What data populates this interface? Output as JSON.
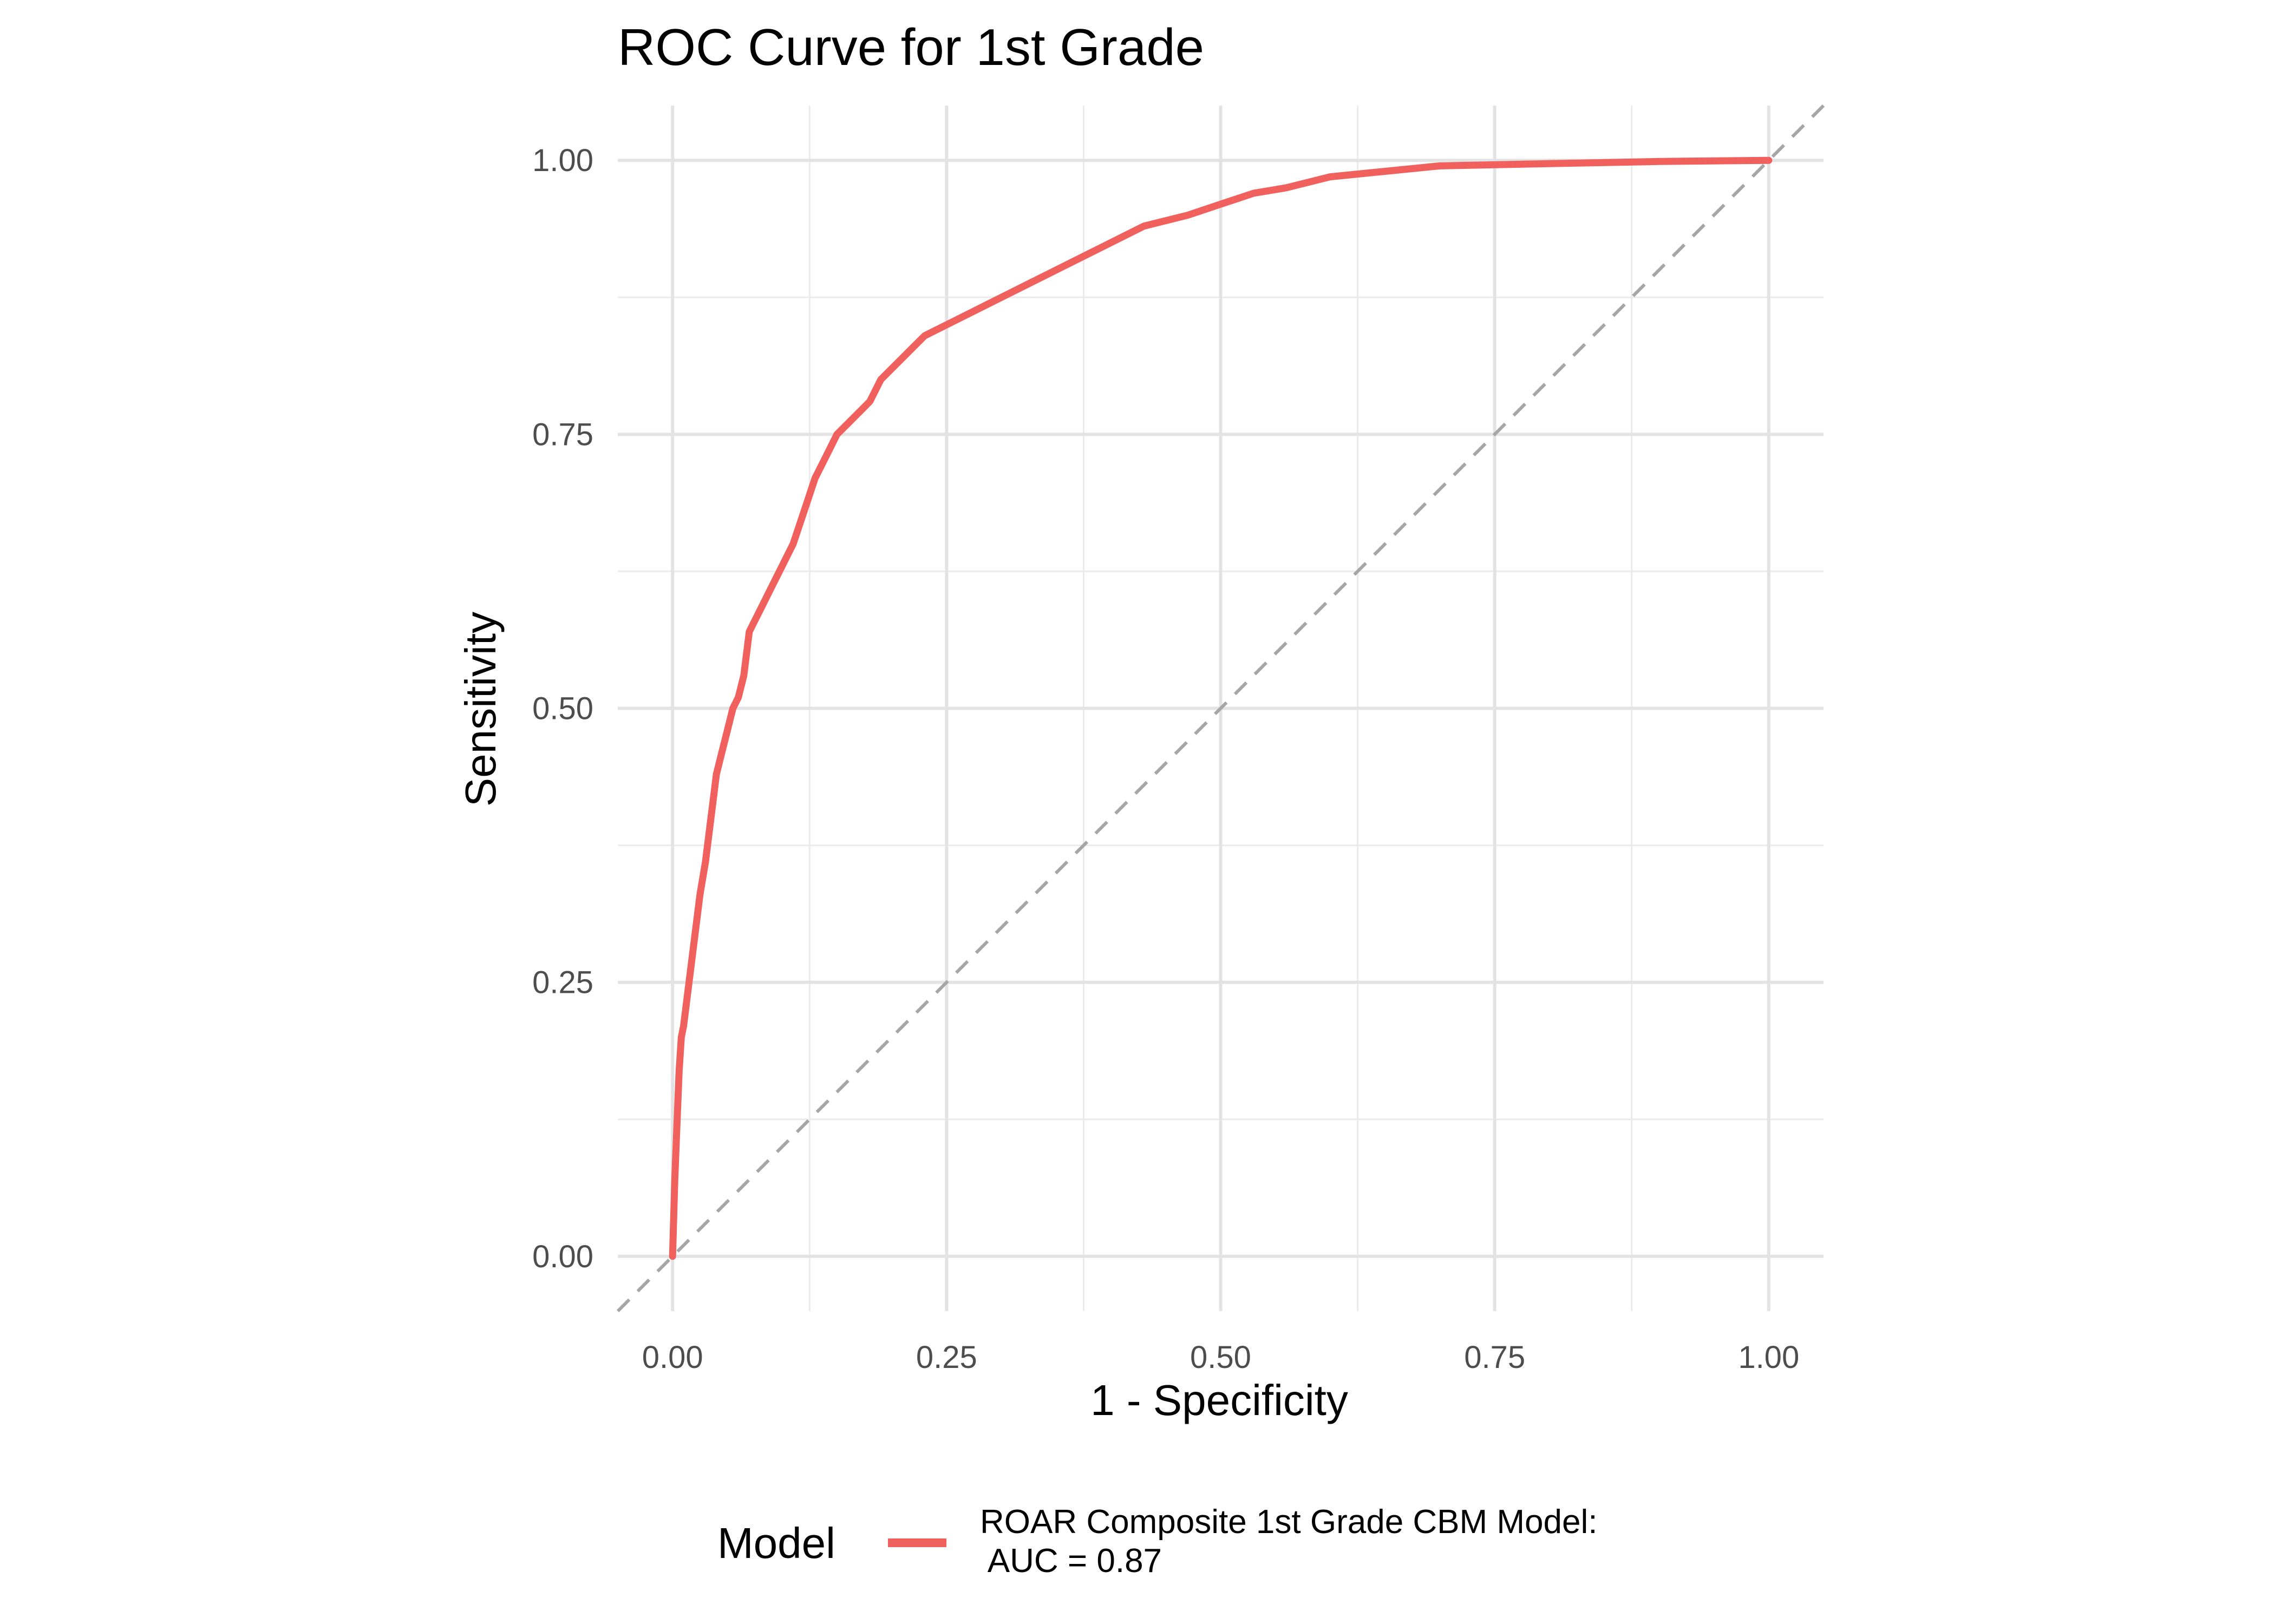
{
  "chart_data": {
    "type": "line",
    "title": "ROC Curve for 1st Grade",
    "xlabel": "1 - Specificity",
    "ylabel": "Sensitivity",
    "xlim": [
      -0.05,
      1.05
    ],
    "ylim": [
      -0.05,
      1.05
    ],
    "x_ticks": [
      "0.00",
      "0.25",
      "0.50",
      "0.75",
      "1.00"
    ],
    "y_ticks": [
      "0.00",
      "0.25",
      "0.50",
      "0.75",
      "1.00"
    ],
    "grid": true,
    "legend_position": "bottom",
    "legend_title": "Model",
    "series": [
      {
        "name": "ROAR Composite 1st Grade CBM Model:\n AUC = 0.87",
        "color": "#f0605c",
        "x": [
          0.0,
          0.002,
          0.004,
          0.006,
          0.008,
          0.01,
          0.015,
          0.02,
          0.025,
          0.03,
          0.035,
          0.04,
          0.045,
          0.05,
          0.055,
          0.06,
          0.065,
          0.07,
          0.08,
          0.09,
          0.1,
          0.11,
          0.12,
          0.13,
          0.14,
          0.15,
          0.16,
          0.17,
          0.18,
          0.19,
          0.2,
          0.21,
          0.22,
          0.23,
          0.25,
          0.27,
          0.29,
          0.31,
          0.33,
          0.35,
          0.37,
          0.39,
          0.41,
          0.43,
          0.45,
          0.47,
          0.5,
          0.53,
          0.56,
          0.6,
          0.65,
          0.7,
          0.8,
          0.9,
          1.0
        ],
        "y": [
          0.0,
          0.07,
          0.12,
          0.17,
          0.2,
          0.21,
          0.25,
          0.29,
          0.33,
          0.36,
          0.4,
          0.44,
          0.46,
          0.48,
          0.5,
          0.51,
          0.53,
          0.57,
          0.59,
          0.61,
          0.63,
          0.65,
          0.68,
          0.71,
          0.73,
          0.75,
          0.76,
          0.77,
          0.78,
          0.8,
          0.81,
          0.82,
          0.83,
          0.84,
          0.85,
          0.86,
          0.87,
          0.88,
          0.89,
          0.9,
          0.91,
          0.92,
          0.93,
          0.94,
          0.945,
          0.95,
          0.96,
          0.97,
          0.975,
          0.985,
          0.99,
          0.995,
          0.997,
          0.999,
          1.0
        ]
      },
      {
        "name": "",
        "style": "dashed",
        "color": "#a6a6a6",
        "x": [
          -0.05,
          1.05
        ],
        "y": [
          -0.05,
          1.05
        ]
      }
    ]
  }
}
